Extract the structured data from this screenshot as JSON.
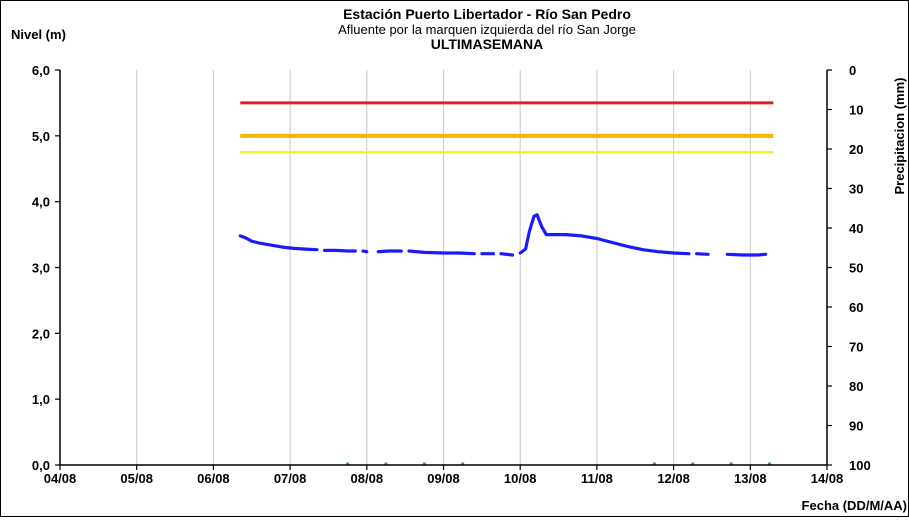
{
  "chart_data": {
    "type": "line",
    "title": "Estación Puerto Libertador - Río San Pedro",
    "subtitle": "Afluente por la marquen izquierda del río San Jorge",
    "period": "ULTIMASEMANA",
    "ylabel": "Nivel (m)",
    "y2label": "Precipitacion (mm)",
    "xlabel": "Fecha (DD/M/AA)",
    "x_ticks": [
      "04/08",
      "05/08",
      "06/08",
      "07/08",
      "08/08",
      "09/08",
      "10/08",
      "11/08",
      "12/08",
      "13/08",
      "14/08"
    ],
    "y_ticks": [
      "0,0",
      "1,0",
      "2,0",
      "3,0",
      "4,0",
      "5,0",
      "6,0"
    ],
    "y2_ticks": [
      "0",
      "10",
      "20",
      "30",
      "40",
      "50",
      "60",
      "70",
      "80",
      "90",
      "100"
    ],
    "ylim": [
      0,
      6
    ],
    "y2lim": [
      0,
      100
    ],
    "y2_inverted": true,
    "grid": "vertical",
    "threshold_lines": [
      {
        "color": "#e02020",
        "x_start": 6.35,
        "x_end": 13.3,
        "y": 5.5
      },
      {
        "color": "#f5b400",
        "x_start": 6.35,
        "x_end": 13.3,
        "y": 5.0
      },
      {
        "color": "#ffee22",
        "x_start": 6.35,
        "x_end": 13.3,
        "y": 4.75
      }
    ],
    "series": [
      {
        "color": "#1a1aff",
        "segments": [
          [
            [
              6.35,
              3.48
            ],
            [
              6.42,
              3.45
            ],
            [
              6.5,
              3.4
            ],
            [
              6.6,
              3.37
            ],
            [
              6.75,
              3.34
            ],
            [
              6.9,
              3.31
            ],
            [
              7.05,
              3.29
            ],
            [
              7.2,
              3.28
            ],
            [
              7.35,
              3.27
            ]
          ],
          [
            [
              7.45,
              3.26
            ],
            [
              7.6,
              3.26
            ],
            [
              7.75,
              3.25
            ],
            [
              7.85,
              3.25
            ]
          ],
          [
            [
              7.95,
              3.25
            ],
            [
              8.0,
              3.24
            ]
          ],
          [
            [
              8.15,
              3.24
            ],
            [
              8.3,
              3.25
            ],
            [
              8.45,
              3.25
            ]
          ],
          [
            [
              8.55,
              3.25
            ],
            [
              8.75,
              3.23
            ],
            [
              9.0,
              3.22
            ],
            [
              9.2,
              3.22
            ],
            [
              9.4,
              3.21
            ]
          ],
          [
            [
              9.5,
              3.21
            ],
            [
              9.65,
              3.21
            ]
          ],
          [
            [
              9.75,
              3.21
            ],
            [
              9.9,
              3.19
            ]
          ],
          [
            [
              10.0,
              3.22
            ],
            [
              10.07,
              3.28
            ],
            [
              10.12,
              3.55
            ],
            [
              10.18,
              3.78
            ],
            [
              10.22,
              3.8
            ],
            [
              10.28,
              3.62
            ],
            [
              10.34,
              3.5
            ],
            [
              10.45,
              3.5
            ],
            [
              10.6,
              3.5
            ],
            [
              10.8,
              3.48
            ],
            [
              11.0,
              3.44
            ],
            [
              11.2,
              3.38
            ],
            [
              11.4,
              3.32
            ],
            [
              11.6,
              3.27
            ],
            [
              11.8,
              3.24
            ],
            [
              12.0,
              3.22
            ],
            [
              12.2,
              3.21
            ]
          ],
          [
            [
              12.3,
              3.21
            ],
            [
              12.45,
              3.2
            ]
          ],
          [
            [
              12.7,
              3.2
            ],
            [
              12.9,
              3.19
            ],
            [
              13.1,
              3.19
            ],
            [
              13.2,
              3.2
            ]
          ]
        ]
      }
    ],
    "precipitation": {
      "color": "#22bb22",
      "x": [
        7.75,
        8.25,
        8.75,
        9.25,
        11.75,
        12.25,
        12.75,
        13.25
      ],
      "values": [
        0,
        0,
        0,
        0,
        0,
        0,
        0,
        0
      ]
    }
  }
}
